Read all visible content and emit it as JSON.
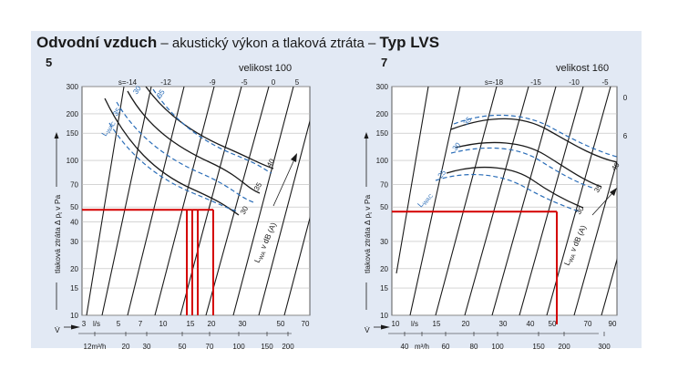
{
  "title": {
    "main": "Odvodní vzduch",
    "dash1": " – ",
    "middle": "akustický výkon a tlaková ztráta",
    "dash2": " – ",
    "type": "Typ LVS"
  },
  "colors": {
    "panel": "#e2e9f4",
    "red": "#d40000",
    "blue": "#2a6db8",
    "ink": "#1a1a1a"
  },
  "chart_data": [
    {
      "type": "line",
      "number": "5",
      "size_label": "velikost 100",
      "ylabel": "tlaková ztráta Δ p",
      "ylabel_sub": "t",
      "ylabel_tail": " v Pa",
      "ylog": true,
      "ylim": [
        10,
        300
      ],
      "yticks": [
        10,
        15,
        20,
        30,
        40,
        50,
        70,
        100,
        150,
        200,
        300
      ],
      "xlog": true,
      "xlim": [
        3,
        70
      ],
      "x_ls_ticks": [
        "3",
        "l/s",
        "5",
        "7",
        "10",
        "15",
        "20",
        "30",
        "50",
        "70"
      ],
      "x_m3h_ticks": [
        "12m³/h",
        "20",
        "30",
        "50",
        "70",
        "100",
        "150",
        "200"
      ],
      "v_label": "V̇",
      "s_labels": [
        "s=-14",
        "-12",
        "-9",
        "-5",
        "0",
        "5"
      ],
      "lwa_axis_label": "L",
      "lwa_axis_sub": "WA",
      "lwa_axis_tail": " v dB (A)",
      "lwa_values": [
        "40",
        "35",
        "30"
      ],
      "lwac_label": "L",
      "lwac_sub": "WAC",
      "lwac_values": [
        "35",
        "30",
        "35"
      ],
      "annotation_operating_pressure_pa": 48,
      "annotation_flows_ls": [
        15.5,
        16.5,
        17.5,
        19
      ]
    },
    {
      "type": "line",
      "number": "7",
      "size_label": "velikost 160",
      "ylabel": "tlaková ztráta Δ p",
      "ylabel_sub": "t",
      "ylabel_tail": " v Pa",
      "ylog": true,
      "ylim": [
        10,
        300
      ],
      "yticks": [
        10,
        15,
        20,
        30,
        50,
        70,
        100,
        150,
        200,
        300
      ],
      "xlog": true,
      "xlim": [
        10,
        90
      ],
      "x_ls_ticks": [
        "10",
        "l/s",
        "15",
        "20",
        "30",
        "40",
        "50",
        "70",
        "90"
      ],
      "x_m3h_ticks": [
        "40",
        "m³/h",
        "60",
        "80",
        "100",
        "150",
        "200",
        "300"
      ],
      "v_label": "V̇",
      "s_labels": [
        "s=-18",
        "-15",
        "-10",
        "-5"
      ],
      "right_labels": [
        "0",
        "6"
      ],
      "lwa_axis_label": "L",
      "lwa_axis_sub": "WA",
      "lwa_axis_tail": " v dB (A)",
      "lwa_values": [
        "40",
        "35",
        "30"
      ],
      "lwac_label": "L",
      "lwac_sub": "WAC",
      "lwac_values": [
        "35",
        "30",
        "25"
      ],
      "annotation_operating_pressure_pa": 48,
      "annotation_flow_ls": 52
    }
  ]
}
